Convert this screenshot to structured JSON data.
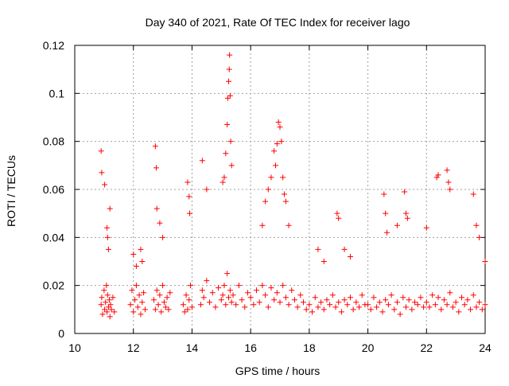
{
  "chart_data": {
    "type": "scatter",
    "title": "Day 340 of 2021, Rate Of TEC Index for receiver lago",
    "xlabel": "GPS time / hours",
    "ylabel": "ROTI / TECUs",
    "xlim": [
      10,
      24
    ],
    "ylim": [
      0,
      0.12
    ],
    "x_ticks": [
      "10",
      "12",
      "14",
      "16",
      "18",
      "20",
      "22",
      "24"
    ],
    "y_ticks": [
      "0",
      "0.02",
      "0.04",
      "0.06",
      "0.08",
      "0.1",
      "0.12"
    ],
    "grid": true,
    "marker": "plus",
    "color": "#ff0000",
    "series": [
      {
        "x": [
          10.9,
          10.92,
          10.95,
          11.0,
          11.02,
          11.05,
          11.08,
          11.1,
          11.12,
          11.15,
          11.18,
          11.2,
          11.22,
          11.25,
          11.3,
          11.35,
          10.9,
          10.92,
          11.02,
          11.1,
          11.12,
          11.15,
          11.2,
          11.9,
          11.95,
          12.0,
          12.05,
          12.1,
          12.15,
          12.2,
          12.25,
          12.3,
          12.35,
          12.4,
          12.0,
          12.1,
          12.25,
          12.3,
          12.7,
          12.75,
          12.8,
          12.85,
          12.9,
          12.95,
          13.0,
          13.05,
          13.1,
          13.15,
          13.2,
          13.25,
          12.75,
          12.78,
          12.8,
          12.9,
          13.0,
          13.7,
          13.75,
          13.8,
          13.85,
          13.9,
          13.95,
          14.0,
          13.85,
          13.9,
          13.92,
          14.3,
          14.35,
          14.4,
          14.5,
          14.6,
          14.7,
          14.8,
          14.9,
          15.0,
          15.05,
          15.1,
          15.15,
          15.2,
          15.25,
          15.3,
          15.35,
          15.4,
          15.5,
          15.6,
          15.7,
          15.8,
          15.9,
          14.35,
          14.5,
          15.05,
          15.1,
          15.15,
          15.2,
          15.22,
          15.25,
          15.27,
          15.28,
          15.3,
          15.32,
          15.35,
          16.0,
          16.1,
          16.2,
          16.3,
          16.4,
          16.5,
          16.6,
          16.7,
          16.8,
          16.9,
          17.0,
          17.1,
          17.2,
          17.3,
          17.4,
          17.5,
          17.6,
          17.7,
          17.8,
          17.9,
          16.4,
          16.5,
          16.6,
          16.7,
          16.8,
          16.85,
          16.9,
          16.95,
          17.0,
          17.05,
          17.1,
          17.15,
          17.2,
          17.3,
          18.0,
          18.1,
          18.2,
          18.3,
          18.4,
          18.5,
          18.6,
          18.7,
          18.8,
          18.9,
          19.0,
          19.1,
          19.2,
          19.3,
          19.4,
          19.5,
          19.6,
          19.7,
          19.8,
          19.9,
          18.3,
          18.5,
          18.95,
          19.0,
          19.2,
          19.4,
          20.0,
          20.1,
          20.2,
          20.3,
          20.4,
          20.5,
          20.6,
          20.7,
          20.8,
          20.9,
          21.0,
          21.1,
          21.2,
          21.3,
          21.4,
          21.5,
          21.6,
          21.7,
          21.8,
          21.9,
          20.55,
          20.6,
          20.65,
          21.0,
          21.25,
          21.3,
          21.35,
          22.0,
          22.1,
          22.2,
          22.3,
          22.4,
          22.5,
          22.6,
          22.7,
          22.8,
          22.9,
          23.0,
          23.1,
          23.2,
          23.3,
          23.4,
          23.5,
          23.6,
          23.7,
          23.8,
          23.9,
          24.0,
          22.0,
          22.35,
          22.4,
          22.7,
          22.75,
          22.8,
          23.6,
          23.7,
          23.8,
          24.0
        ],
        "y": [
          0.012,
          0.015,
          0.008,
          0.018,
          0.01,
          0.013,
          0.02,
          0.009,
          0.016,
          0.011,
          0.014,
          0.007,
          0.012,
          0.01,
          0.015,
          0.009,
          0.076,
          0.067,
          0.062,
          0.044,
          0.04,
          0.035,
          0.052,
          0.012,
          0.018,
          0.009,
          0.014,
          0.02,
          0.011,
          0.016,
          0.008,
          0.013,
          0.017,
          0.01,
          0.033,
          0.028,
          0.035,
          0.03,
          0.014,
          0.01,
          0.018,
          0.012,
          0.016,
          0.009,
          0.02,
          0.013,
          0.011,
          0.015,
          0.01,
          0.017,
          0.078,
          0.069,
          0.052,
          0.046,
          0.04,
          0.012,
          0.009,
          0.016,
          0.01,
          0.014,
          0.02,
          0.011,
          0.063,
          0.057,
          0.05,
          0.012,
          0.018,
          0.015,
          0.022,
          0.013,
          0.017,
          0.011,
          0.019,
          0.014,
          0.016,
          0.02,
          0.012,
          0.025,
          0.015,
          0.018,
          0.013,
          0.016,
          0.012,
          0.02,
          0.014,
          0.011,
          0.017,
          0.072,
          0.06,
          0.063,
          0.065,
          0.075,
          0.087,
          0.098,
          0.105,
          0.11,
          0.116,
          0.099,
          0.08,
          0.07,
          0.015,
          0.012,
          0.018,
          0.013,
          0.02,
          0.016,
          0.011,
          0.019,
          0.014,
          0.017,
          0.013,
          0.02,
          0.015,
          0.012,
          0.018,
          0.014,
          0.011,
          0.016,
          0.013,
          0.01,
          0.045,
          0.055,
          0.06,
          0.065,
          0.076,
          0.07,
          0.079,
          0.088,
          0.086,
          0.08,
          0.065,
          0.058,
          0.055,
          0.045,
          0.012,
          0.009,
          0.015,
          0.011,
          0.013,
          0.01,
          0.014,
          0.012,
          0.016,
          0.011,
          0.013,
          0.009,
          0.014,
          0.012,
          0.015,
          0.01,
          0.013,
          0.011,
          0.016,
          0.012,
          0.035,
          0.03,
          0.05,
          0.048,
          0.035,
          0.032,
          0.012,
          0.01,
          0.015,
          0.011,
          0.013,
          0.009,
          0.014,
          0.012,
          0.016,
          0.01,
          0.013,
          0.008,
          0.015,
          0.011,
          0.014,
          0.01,
          0.013,
          0.012,
          0.015,
          0.011,
          0.058,
          0.05,
          0.042,
          0.045,
          0.059,
          0.05,
          0.048,
          0.013,
          0.011,
          0.016,
          0.012,
          0.015,
          0.01,
          0.014,
          0.012,
          0.017,
          0.011,
          0.013,
          0.009,
          0.015,
          0.012,
          0.014,
          0.01,
          0.016,
          0.011,
          0.013,
          0.01,
          0.012,
          0.044,
          0.065,
          0.066,
          0.068,
          0.063,
          0.06,
          0.058,
          0.045,
          0.04,
          0.03
        ]
      }
    ]
  }
}
